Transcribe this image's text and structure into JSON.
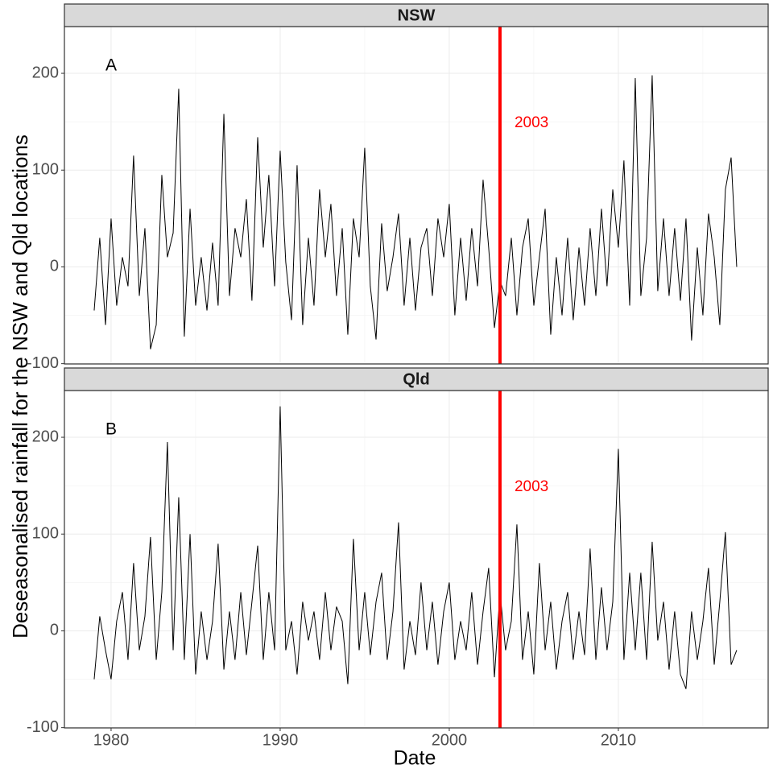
{
  "chart_data": {
    "type": "line",
    "facet": true,
    "x_label": "Date",
    "y_label": "Deseasonalised rainfall for the NSW and Qld locations",
    "x": [
      1979,
      1979.33,
      1979.67,
      1980,
      1980.33,
      1980.67,
      1981,
      1981.33,
      1981.67,
      1982,
      1982.33,
      1982.67,
      1983,
      1983.33,
      1983.67,
      1984,
      1984.33,
      1984.67,
      1985,
      1985.33,
      1985.67,
      1986,
      1986.33,
      1986.67,
      1987,
      1987.33,
      1987.67,
      1988,
      1988.33,
      1988.67,
      1989,
      1989.33,
      1989.67,
      1990,
      1990.33,
      1990.67,
      1991,
      1991.33,
      1991.67,
      1992,
      1992.33,
      1992.67,
      1993,
      1993.33,
      1993.67,
      1994,
      1994.33,
      1994.67,
      1995,
      1995.33,
      1995.67,
      1996,
      1996.33,
      1996.67,
      1997,
      1997.33,
      1997.67,
      1998,
      1998.33,
      1998.67,
      1999,
      1999.33,
      1999.67,
      2000,
      2000.33,
      2000.67,
      2001,
      2001.33,
      2001.67,
      2002,
      2002.33,
      2002.67,
      2003,
      2003.33,
      2003.67,
      2004,
      2004.33,
      2004.67,
      2005,
      2005.33,
      2005.67,
      2006,
      2006.33,
      2006.67,
      2007,
      2007.33,
      2007.67,
      2008,
      2008.33,
      2008.67,
      2009,
      2009.33,
      2009.67,
      2010,
      2010.33,
      2010.67,
      2011,
      2011.33,
      2011.67,
      2012,
      2012.33,
      2012.67,
      2013,
      2013.33,
      2013.67,
      2014,
      2014.33,
      2014.67,
      2015,
      2015.33,
      2015.67,
      2016,
      2016.33,
      2016.67,
      2017
    ],
    "series": [
      {
        "name": "NSW",
        "panel_label": "A",
        "color": "#000000",
        "values": [
          -45,
          30,
          -60,
          50,
          -40,
          10,
          -20,
          115,
          -30,
          40,
          -85,
          -60,
          95,
          10,
          35,
          184,
          -72,
          60,
          -40,
          10,
          -45,
          25,
          -40,
          158,
          -30,
          40,
          10,
          70,
          -35,
          134,
          20,
          95,
          -20,
          120,
          5,
          -55,
          105,
          -60,
          30,
          -40,
          80,
          10,
          65,
          -30,
          40,
          -70,
          50,
          10,
          123,
          -20,
          -75,
          45,
          -25,
          10,
          55,
          -40,
          30,
          -45,
          20,
          40,
          -30,
          50,
          10,
          65,
          -50,
          30,
          -35,
          40,
          -20,
          90,
          20,
          -63,
          -15,
          -30,
          30,
          -50,
          20,
          50,
          -40,
          10,
          60,
          -70,
          10,
          -50,
          30,
          -55,
          20,
          -40,
          40,
          -30,
          60,
          -20,
          80,
          20,
          110,
          -40,
          195,
          -30,
          30,
          198,
          -25,
          50,
          -30,
          40,
          -35,
          50,
          -76,
          20,
          -50,
          55,
          10,
          -60,
          80,
          113,
          0
        ]
      },
      {
        "name": "Qld",
        "panel_label": "B",
        "color": "#000000",
        "values": [
          -50,
          15,
          -20,
          -50,
          10,
          40,
          -30,
          70,
          -20,
          15,
          97,
          -30,
          40,
          195,
          -20,
          138,
          -30,
          100,
          -45,
          20,
          -30,
          10,
          90,
          -40,
          20,
          -30,
          40,
          -25,
          30,
          88,
          -30,
          40,
          -20,
          232,
          -20,
          10,
          -45,
          30,
          -10,
          20,
          -30,
          40,
          -20,
          25,
          10,
          -55,
          95,
          -20,
          40,
          -25,
          30,
          60,
          -30,
          20,
          112,
          -40,
          10,
          -25,
          50,
          -20,
          30,
          -35,
          20,
          50,
          -30,
          10,
          -20,
          40,
          -35,
          20,
          65,
          -48,
          40,
          -20,
          10,
          110,
          -30,
          20,
          -45,
          70,
          -20,
          30,
          -40,
          10,
          40,
          -30,
          20,
          -25,
          85,
          -30,
          45,
          -20,
          30,
          188,
          -30,
          60,
          -20,
          60,
          -30,
          92,
          -10,
          30,
          -40,
          20,
          -45,
          -60,
          20,
          -30,
          10,
          65,
          -35,
          30,
          102,
          -35,
          -20
        ]
      }
    ],
    "xlim": [
      1977.24,
      2018.86
    ],
    "xticks": [
      1980,
      1990,
      2000,
      2010
    ],
    "minor_xticks": [
      1985,
      1995,
      2005,
      2015
    ],
    "ylim": [
      -100.3,
      248.3
    ],
    "yticks": [
      -100,
      0,
      100,
      200
    ],
    "minor_yticks": [
      -50,
      50,
      150
    ],
    "vline": 2003,
    "vline_color": "#ff0000",
    "grid": true
  }
}
